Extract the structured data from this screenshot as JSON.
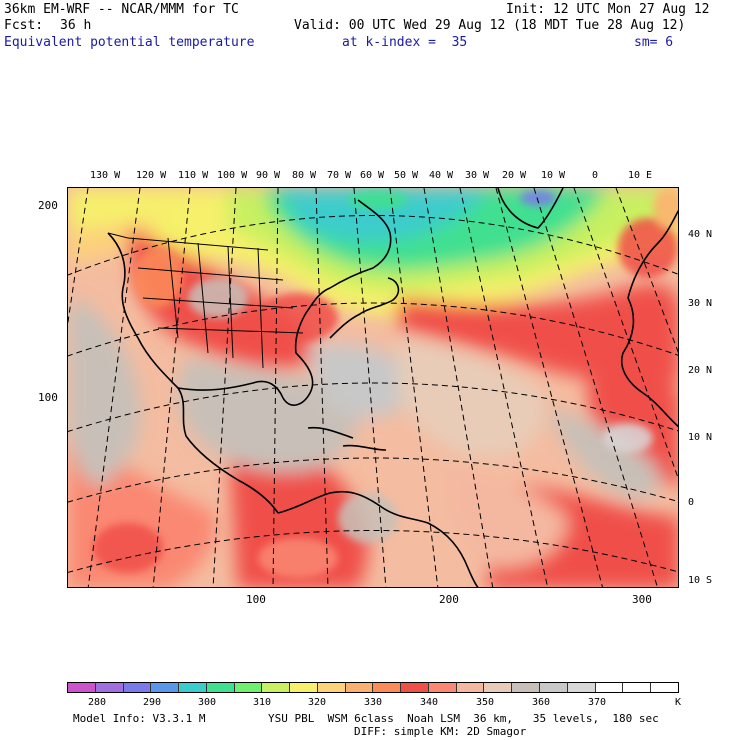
{
  "header": {
    "model": "36km EM-WRF -- NCAR/MMM for TC",
    "init": "Init: 12 UTC Mon 27 Aug 12",
    "fcst_label": "Fcst:",
    "fcst_value": "36 h",
    "valid": "Valid: 00 UTC Wed 29 Aug 12 (18 MDT Tue 28 Aug 12)",
    "field": "Equivalent potential temperature",
    "level": "at k-index =  35",
    "smoothing": "sm= 6"
  },
  "map": {
    "top_longitudes": [
      "130 W",
      "120 W",
      "110 W",
      "100 W",
      "90 W",
      "80 W",
      "70 W",
      "60 W",
      "50 W",
      "40 W",
      "30 W",
      "20 W",
      "10 W",
      "0",
      "10 E"
    ],
    "right_latitudes": [
      "40 N",
      "30 N",
      "20 N",
      "10 N",
      "0",
      "10 S"
    ],
    "x_ticks": [
      "100",
      "200",
      "300"
    ],
    "y_ticks": [
      "200",
      "100"
    ]
  },
  "colorbar": {
    "labels": [
      "280",
      "290",
      "300",
      "310",
      "320",
      "330",
      "340",
      "350",
      "360",
      "370",
      "K"
    ],
    "colors": [
      "#cc55cc",
      "#a070e0",
      "#7a7ae8",
      "#5a96ea",
      "#3ccccc",
      "#40e090",
      "#70f070",
      "#c8f060",
      "#f6f06a",
      "#fcd27a",
      "#fcb070",
      "#fb8c5a",
      "#f05048",
      "#fa8872",
      "#f4b8a0",
      "#e8ccb8",
      "#c8c0b8",
      "#c8c8c8",
      "#d8d8d8",
      "#ffffff",
      "#ffffff",
      "#ffffff"
    ]
  },
  "footer": {
    "model_info": "Model Info: V3.3.1 M",
    "physics": "YSU PBL  WSM 6class  Noah LSM  36 km,   35 levels,  180 sec",
    "diffusion": "DIFF: simple KM: 2D Smagor"
  }
}
